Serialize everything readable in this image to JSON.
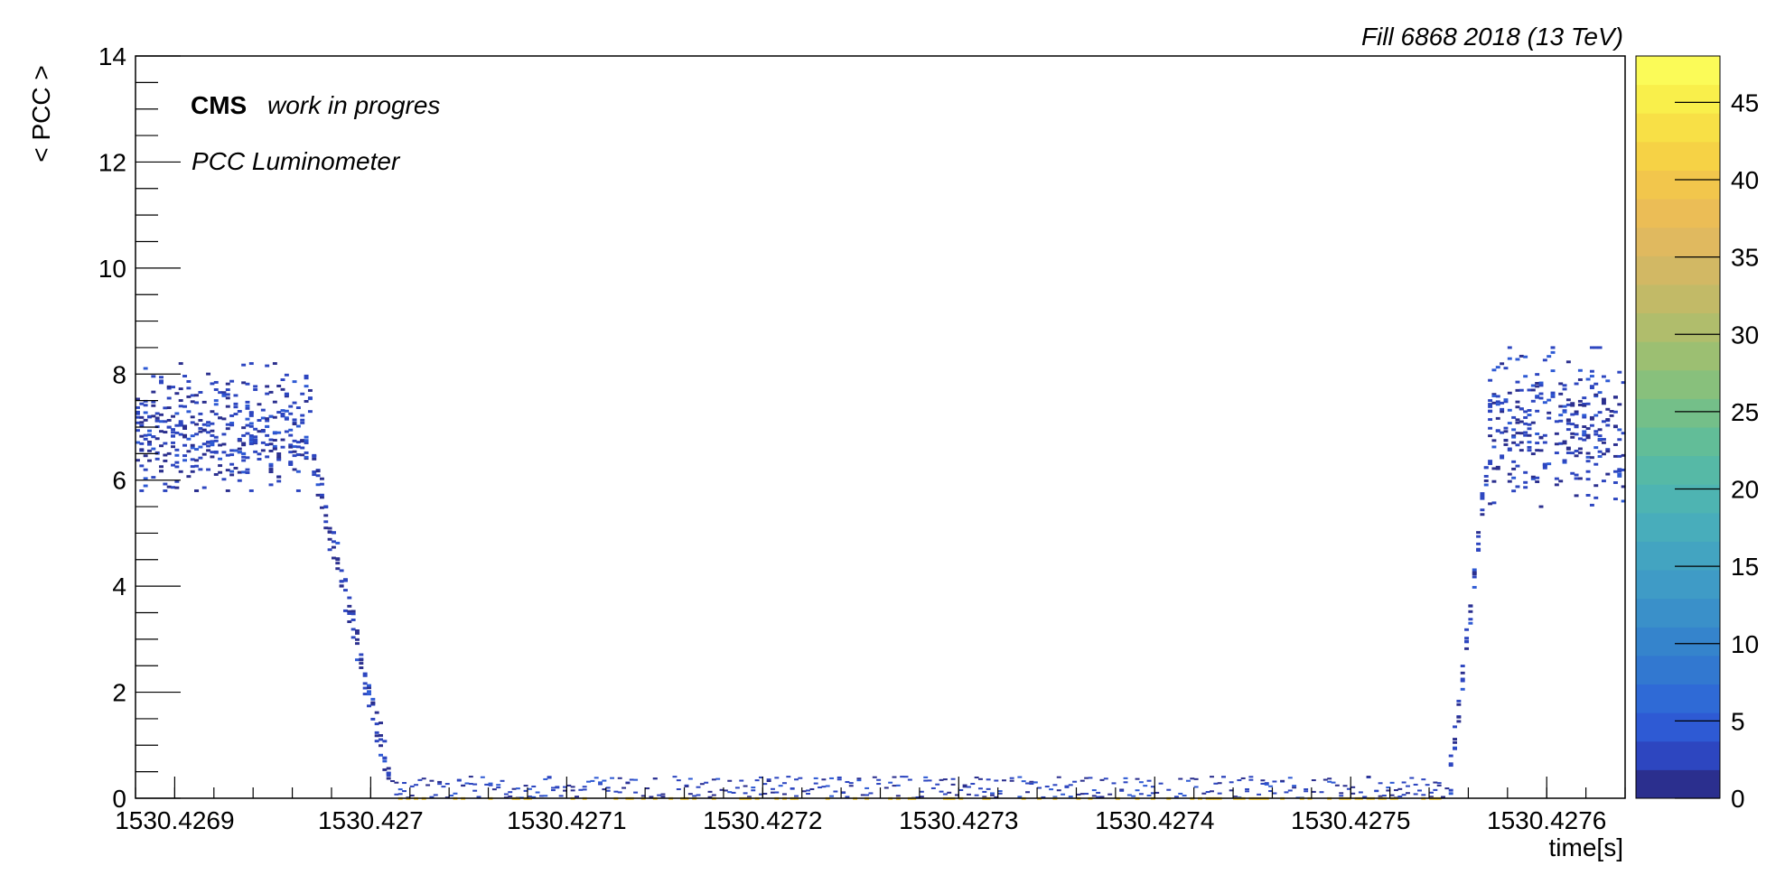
{
  "chart_data": {
    "type": "heatmap",
    "title": "",
    "header_label": "Fill 6868   2018  (13 TeV)",
    "xlabel": "time[s]",
    "ylabel": "< PCC >",
    "x_ticks": [
      "1530.4269",
      "1530.427",
      "1530.4271",
      "1530.4272",
      "1530.4273",
      "1530.4274",
      "1530.4275",
      "1530.4276"
    ],
    "x_tick_values": [
      1530.4269,
      1530.427,
      1530.4271,
      1530.4272,
      1530.4273,
      1530.4274,
      1530.4275,
      1530.4276
    ],
    "xlim": [
      1530.42688,
      1530.42764
    ],
    "y_ticks": [
      "0",
      "2",
      "4",
      "6",
      "8",
      "10",
      "12",
      "14"
    ],
    "ylim": [
      0,
      14
    ],
    "colorbar": {
      "min": 0,
      "max": 48,
      "ticks": [
        "0",
        "5",
        "10",
        "15",
        "20",
        "25",
        "30",
        "35",
        "40",
        "45"
      ],
      "tick_values": [
        0,
        5,
        10,
        15,
        20,
        25,
        30,
        35,
        40,
        45
      ],
      "palette": [
        "#2b2f8e",
        "#2d46c0",
        "#2e5ad4",
        "#2f6ad6",
        "#3278d0",
        "#3584cc",
        "#3a90c9",
        "#3f9bc6",
        "#43a4c1",
        "#48adbb",
        "#4eb4b2",
        "#56b9a6",
        "#62bd98",
        "#74bf89",
        "#88c07c",
        "#9cbf72",
        "#b0bd6c",
        "#c2ba67",
        "#d2b864",
        "#e0b95f",
        "#ebbd56",
        "#f2c64c",
        "#f6d245",
        "#f8e046",
        "#f9ef4b",
        "#fbfb58"
      ]
    },
    "annotations": {
      "experiment": "CMS",
      "status": "work in progres",
      "detector": "PCC Luminometer"
    },
    "series": [
      {
        "x_range": [
          1530.42688,
          1530.42697
        ],
        "y_range": [
          5.8,
          8.2
        ],
        "y_mean": 6.9,
        "z_level": "low"
      },
      {
        "x_range": [
          1530.42697,
          1530.42701
        ],
        "y_range": [
          0.3,
          6.5
        ],
        "y_mean": 3,
        "z_level": "low"
      },
      {
        "x_range": [
          1530.42701,
          1530.42755
        ],
        "y_range": [
          0,
          0.5
        ],
        "y_mean": 0.1,
        "z_level": "low"
      },
      {
        "x_range": [
          1530.42755,
          1530.42757
        ],
        "y_range": [
          0.3,
          6.3
        ],
        "y_mean": 3,
        "z_level": "low"
      },
      {
        "x_range": [
          1530.42757,
          1530.42764
        ],
        "y_range": [
          5.5,
          8.5
        ],
        "y_mean": 7,
        "z_level": "low"
      }
    ]
  }
}
